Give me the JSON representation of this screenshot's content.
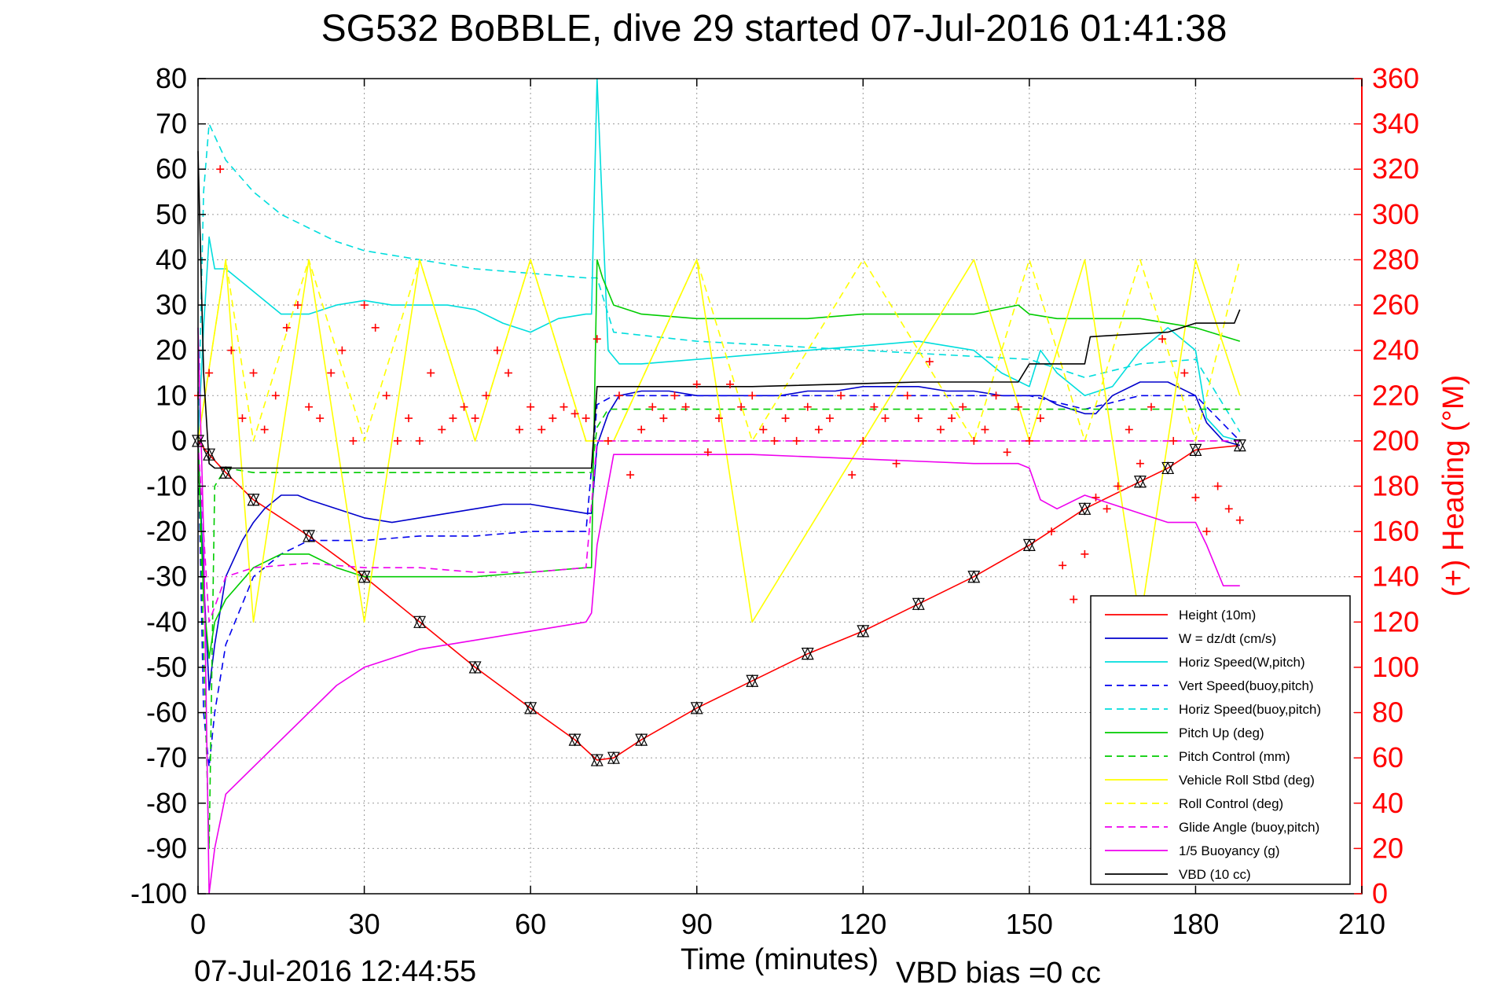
{
  "chart_data": {
    "type": "line",
    "title": "SG532 BoBBLE, dive 29 started 07-Jul-2016 01:41:38",
    "xlabel": "Time (minutes)",
    "ylabel_right": "(+) Heading (°M)",
    "footer_left": "07-Jul-2016 12:44:55",
    "footer_right": "VBD bias =0 cc",
    "xlim": [
      0,
      210
    ],
    "ylim": [
      -100,
      80
    ],
    "ylim_right": [
      0,
      360
    ],
    "xticks": [
      0,
      30,
      60,
      90,
      120,
      150,
      180,
      210
    ],
    "yticks": [
      -100,
      -90,
      -80,
      -70,
      -60,
      -50,
      -40,
      -30,
      -20,
      -10,
      0,
      10,
      20,
      30,
      40,
      50,
      60,
      70,
      80
    ],
    "yticks_right": [
      0,
      20,
      40,
      60,
      80,
      100,
      120,
      140,
      160,
      180,
      200,
      220,
      240,
      260,
      280,
      300,
      320,
      340,
      360
    ],
    "grid": true,
    "legend_position": "bottom-right",
    "series": [
      {
        "name": "Height (10m)",
        "color": "#ff0000",
        "dash": "solid",
        "x": [
          0,
          2,
          5,
          10,
          20,
          30,
          40,
          50,
          60,
          68,
          72,
          75,
          80,
          90,
          100,
          110,
          120,
          130,
          140,
          150,
          160,
          170,
          175,
          180,
          188
        ],
        "y": [
          0,
          -3,
          -7,
          -13,
          -21,
          -30,
          -40,
          -50,
          -59,
          -66,
          -70.5,
          -70,
          -66,
          -59,
          -53,
          -47,
          -42,
          -36,
          -30,
          -23,
          -15,
          -9,
          -6,
          -2,
          -1
        ]
      },
      {
        "name": "W = dz/dt (cm/s)",
        "color": "#0000cc",
        "dash": "solid",
        "x": [
          0,
          1,
          2,
          3,
          5,
          8,
          10,
          12,
          15,
          18,
          20,
          25,
          30,
          35,
          40,
          45,
          50,
          55,
          60,
          65,
          70,
          71,
          72,
          74,
          76,
          80,
          85,
          90,
          95,
          100,
          105,
          110,
          115,
          120,
          125,
          130,
          135,
          140,
          145,
          150,
          152,
          155,
          160,
          162,
          165,
          170,
          175,
          180,
          182,
          185,
          188
        ],
        "y": [
          0,
          -30,
          -55,
          -45,
          -30,
          -22,
          -18,
          -15,
          -12,
          -12,
          -13,
          -15,
          -17,
          -18,
          -17,
          -16,
          -15,
          -14,
          -14,
          -15,
          -16,
          -16,
          -1,
          6,
          10,
          11,
          11,
          10,
          10,
          10,
          10,
          11,
          11,
          12,
          12,
          12,
          11,
          11,
          10,
          10,
          10,
          8,
          6,
          6,
          10,
          13,
          13,
          10,
          4,
          0,
          -1
        ]
      },
      {
        "name": "Horiz Speed(W,pitch)",
        "color": "#00dddd",
        "dash": "solid",
        "x": [
          0,
          1,
          2,
          3,
          5,
          10,
          15,
          20,
          25,
          30,
          35,
          40,
          45,
          50,
          55,
          60,
          65,
          70,
          71,
          72,
          74,
          76,
          80,
          90,
          100,
          110,
          120,
          130,
          140,
          145,
          150,
          152,
          155,
          160,
          165,
          170,
          175,
          180,
          182,
          185,
          188
        ],
        "y": [
          0,
          25,
          45,
          38,
          38,
          33,
          28,
          28,
          30,
          31,
          30,
          30,
          30,
          29,
          26,
          24,
          27,
          28,
          28,
          80,
          20,
          17,
          17,
          18,
          19,
          20,
          21,
          22,
          20,
          15,
          12,
          20,
          15,
          10,
          12,
          20,
          25,
          20,
          5,
          1,
          0
        ]
      },
      {
        "name": "Vert Speed(buoy,pitch)",
        "color": "#0000ee",
        "dash": "dashed",
        "x": [
          0,
          1,
          2,
          3,
          5,
          10,
          15,
          20,
          30,
          40,
          50,
          60,
          70,
          72,
          75,
          90,
          120,
          150,
          160,
          170,
          180,
          188
        ],
        "y": [
          0,
          -60,
          -72,
          -60,
          -45,
          -30,
          -25,
          -22,
          -22,
          -21,
          -21,
          -20,
          -20,
          8,
          10,
          10,
          10,
          10,
          7,
          10,
          10,
          0
        ]
      },
      {
        "name": "Horiz Speed(buoy,pitch)",
        "color": "#00dddd",
        "dash": "dashed",
        "x": [
          0,
          1,
          2,
          5,
          10,
          15,
          20,
          25,
          30,
          40,
          50,
          60,
          70,
          72,
          75,
          90,
          120,
          150,
          160,
          170,
          180,
          188
        ],
        "y": [
          0,
          55,
          70,
          62,
          55,
          50,
          47,
          44,
          42,
          40,
          38,
          37,
          36,
          36,
          24,
          22,
          20,
          18,
          14,
          17,
          18,
          2
        ]
      },
      {
        "name": "Pitch Up (deg)",
        "color": "#00cc00",
        "dash": "solid",
        "x": [
          0,
          1,
          2,
          3,
          5,
          10,
          15,
          20,
          25,
          30,
          40,
          50,
          60,
          70,
          71,
          72,
          73,
          75,
          80,
          90,
          100,
          110,
          120,
          130,
          140,
          148,
          150,
          155,
          160,
          170,
          180,
          188
        ],
        "y": [
          0,
          -35,
          -48,
          -40,
          -35,
          -28,
          -25,
          -25,
          -28,
          -30,
          -30,
          -30,
          -29,
          -28,
          -28,
          40,
          36,
          30,
          28,
          27,
          27,
          27,
          28,
          28,
          28,
          30,
          28,
          27,
          27,
          27,
          25,
          22
        ]
      },
      {
        "name": "Pitch Control (mm)",
        "color": "#00cc00",
        "dash": "dashed",
        "x": [
          0,
          2,
          3,
          5,
          10,
          30,
          60,
          71,
          72,
          74,
          90,
          120,
          150,
          188
        ],
        "y": [
          0,
          -90,
          -10,
          -6,
          -7,
          -7,
          -7,
          -7,
          3,
          7,
          7,
          7,
          7,
          7
        ]
      },
      {
        "name": "Vehicle Roll Stbd (deg)",
        "color": "#ffff00",
        "dash": "solid",
        "x": [
          0,
          5,
          10,
          20,
          30,
          40,
          50,
          60,
          70,
          75,
          90,
          100,
          120,
          140,
          150,
          160,
          170,
          180,
          188
        ],
        "y": [
          0,
          40,
          -40,
          40,
          -40,
          40,
          0,
          40,
          0,
          0,
          40,
          -40,
          0,
          40,
          0,
          40,
          -40,
          40,
          10
        ]
      },
      {
        "name": "Roll Control (deg)",
        "color": "#ffff00",
        "dash": "dashed",
        "x": [
          0,
          5,
          10,
          20,
          30,
          40,
          50,
          60,
          70,
          75,
          90,
          100,
          120,
          140,
          150,
          160,
          170,
          180,
          188
        ],
        "y": [
          0,
          40,
          0,
          40,
          0,
          40,
          0,
          40,
          0,
          0,
          40,
          0,
          40,
          0,
          40,
          0,
          40,
          0,
          40
        ]
      },
      {
        "name": "Glide Angle (buoy,pitch)",
        "color": "#ee00ee",
        "dash": "dashed",
        "x": [
          0,
          2,
          5,
          10,
          20,
          30,
          40,
          50,
          60,
          70,
          72,
          75,
          90,
          120,
          150,
          160,
          170,
          180,
          188
        ],
        "y": [
          0,
          -40,
          -30,
          -28,
          -27,
          -28,
          -28,
          -29,
          -29,
          -28,
          0,
          0,
          0,
          0,
          0,
          0,
          0,
          0,
          0
        ]
      },
      {
        "name": "1/5 Buoyancy (g)",
        "color": "#ee00ee",
        "dash": "solid",
        "x": [
          0,
          1,
          2,
          3,
          5,
          10,
          15,
          20,
          25,
          30,
          35,
          40,
          50,
          60,
          70,
          71,
          72,
          75,
          80,
          90,
          100,
          120,
          140,
          148,
          150,
          152,
          155,
          160,
          165,
          170,
          175,
          180,
          182,
          185,
          188
        ],
        "y": [
          25,
          -20,
          -100,
          -90,
          -78,
          -72,
          -66,
          -60,
          -54,
          -50,
          -48,
          -46,
          -44,
          -42,
          -40,
          -38,
          -23,
          -3,
          -3,
          -3,
          -3,
          -4,
          -5,
          -5,
          -6,
          -13,
          -15,
          -12,
          -14,
          -16,
          -18,
          -18,
          -23,
          -32,
          -32
        ]
      },
      {
        "name": "VBD (10 cc)",
        "color": "#000000",
        "dash": "solid",
        "x": [
          0,
          1,
          2,
          3,
          5,
          30,
          60,
          70,
          71,
          72,
          74,
          100,
          130,
          148,
          150,
          160,
          161,
          175,
          180,
          187,
          188
        ],
        "y": [
          64,
          15,
          -5,
          -6,
          -6,
          -6,
          -6,
          -6,
          -6,
          12,
          12,
          12,
          13,
          13,
          17,
          17,
          23,
          24,
          26,
          26,
          29
        ]
      }
    ],
    "heading_series": {
      "name": "(+) Heading (°M)",
      "color": "#ff0000",
      "marker": "+",
      "x": [
        0,
        2,
        4,
        6,
        8,
        10,
        12,
        14,
        16,
        18,
        20,
        22,
        24,
        26,
        28,
        30,
        32,
        34,
        36,
        38,
        40,
        42,
        44,
        46,
        48,
        50,
        52,
        54,
        56,
        58,
        60,
        62,
        64,
        66,
        68,
        70,
        72,
        74,
        76,
        78,
        80,
        82,
        84,
        86,
        88,
        90,
        92,
        94,
        96,
        98,
        100,
        102,
        104,
        106,
        108,
        110,
        112,
        114,
        116,
        118,
        120,
        122,
        124,
        126,
        128,
        130,
        132,
        134,
        136,
        138,
        140,
        142,
        144,
        146,
        148,
        150,
        152,
        154,
        156,
        158,
        160,
        162,
        164,
        166,
        168,
        170,
        172,
        174,
        176,
        178,
        180,
        182,
        184,
        186,
        188
      ],
      "y": [
        220,
        230,
        320,
        240,
        210,
        230,
        205,
        220,
        250,
        260,
        215,
        210,
        230,
        240,
        200,
        260,
        250,
        220,
        200,
        210,
        200,
        230,
        205,
        210,
        215,
        210,
        220,
        240,
        230,
        205,
        215,
        205,
        210,
        215,
        212,
        210,
        245,
        200,
        220,
        185,
        205,
        215,
        210,
        220,
        215,
        225,
        195,
        210,
        225,
        215,
        220,
        205,
        200,
        210,
        200,
        215,
        205,
        210,
        220,
        185,
        200,
        215,
        210,
        190,
        220,
        210,
        235,
        205,
        210,
        215,
        200,
        205,
        220,
        195,
        215,
        200,
        210,
        160,
        145,
        130,
        150,
        175,
        170,
        180,
        205,
        190,
        215,
        245,
        200,
        230,
        175,
        160,
        180,
        170,
        165
      ]
    }
  }
}
